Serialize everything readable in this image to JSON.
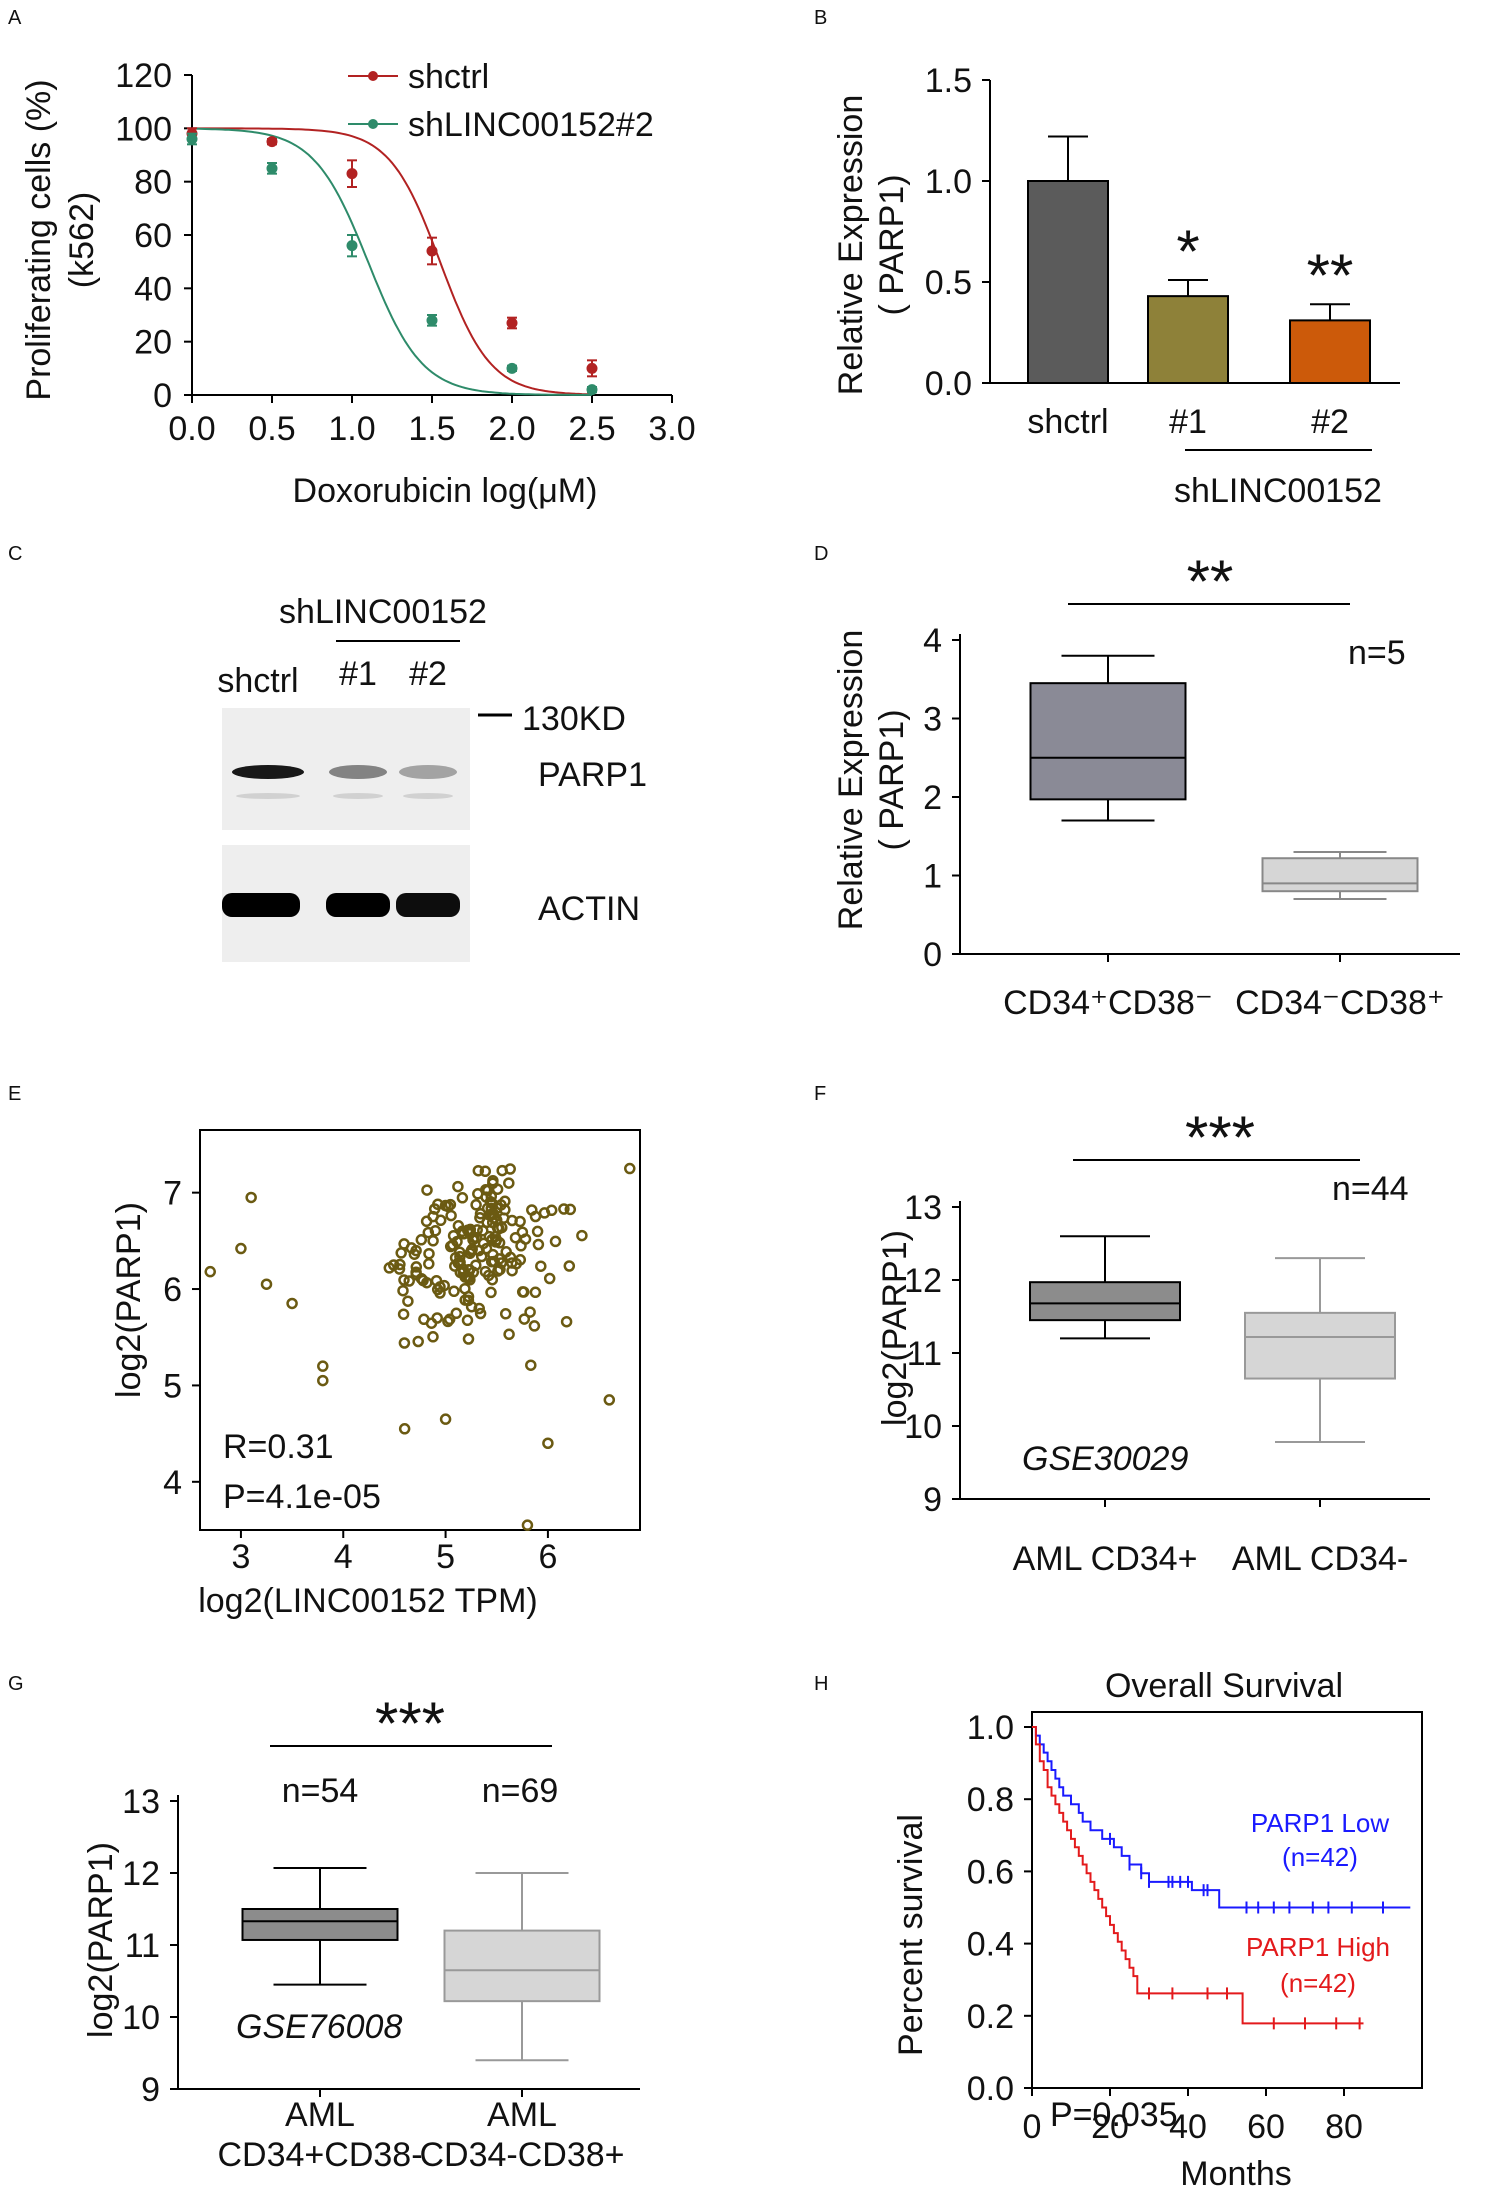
{
  "panels": {
    "A": {
      "letter": "A"
    },
    "B": {
      "letter": "B"
    },
    "C": {
      "letter": "C"
    },
    "D": {
      "letter": "D"
    },
    "E": {
      "letter": "E"
    },
    "F": {
      "letter": "F"
    },
    "G": {
      "letter": "G"
    },
    "H": {
      "letter": "H"
    }
  },
  "colors": {
    "shctrl": "#b22222",
    "shLINC": "#2e8b6a",
    "bar_shctrl": "#5b5b5b",
    "bar_1": "#8e8139",
    "bar_2": "#cc5a0a",
    "box_dark": "#8a8a96",
    "box_light": "#d6d6d6",
    "scatter": "#6b5a12",
    "km_low": "#1a1aff",
    "km_high": "#e31a1c"
  },
  "chart_data": [
    {
      "panel": "A",
      "type": "scatter",
      "ylabel_line1": "Proliferating cells (%)",
      "ylabel_line2": "(k562)",
      "xlabel": "Doxorubicin log(μM)",
      "xlim": [
        0,
        3
      ],
      "ylim": [
        0,
        120
      ],
      "xticks": [
        "0.0",
        "0.5",
        "1.0",
        "1.5",
        "2.0",
        "2.5",
        "3.0"
      ],
      "yticks": [
        "0",
        "20",
        "40",
        "60",
        "80",
        "100",
        "120"
      ],
      "series": [
        {
          "name": "shctrl",
          "x": [
            0.0,
            0.5,
            1.0,
            1.5,
            2.0,
            2.5
          ],
          "y": [
            98,
            95,
            83,
            54,
            27,
            10
          ],
          "err": [
            2,
            1,
            5,
            5,
            2,
            3
          ],
          "ic50": 1.55,
          "hill": 3.0
        },
        {
          "name": "shLINC00152#2",
          "x": [
            0.0,
            0.5,
            1.0,
            1.5,
            2.0,
            2.5
          ],
          "y": [
            96,
            85,
            56,
            28,
            10,
            2
          ],
          "err": [
            2,
            2,
            4,
            2,
            1,
            1
          ],
          "ic50": 1.1,
          "hill": 2.8
        }
      ]
    },
    {
      "panel": "B",
      "type": "bar",
      "ylabel_line1": "Relative Expression",
      "ylabel_line2": "( PARP1)",
      "ylim": [
        0,
        1.5
      ],
      "yticks": [
        "0.0",
        "0.5",
        "1.0",
        "1.5"
      ],
      "categories": [
        "shctrl",
        "#1",
        "#2"
      ],
      "values": [
        1.0,
        0.43,
        0.31
      ],
      "errors": [
        0.22,
        0.08,
        0.08
      ],
      "significance": [
        "",
        "*",
        "**"
      ],
      "group_label": "shLINC00152"
    },
    {
      "panel": "D",
      "type": "box",
      "ylabel_line1": "Relative Expression",
      "ylabel_line2": "( PARP1)",
      "ylim": [
        0,
        4
      ],
      "yticks": [
        "0",
        "1",
        "2",
        "3",
        "4"
      ],
      "groups": [
        {
          "label": "CD34⁺CD38⁻",
          "min": 1.7,
          "q1": 1.97,
          "median": 2.5,
          "q3": 3.45,
          "max": 3.8
        },
        {
          "label": "CD34⁻CD38⁺",
          "min": 0.7,
          "q1": 0.8,
          "median": 0.9,
          "q3": 1.22,
          "max": 1.3
        }
      ],
      "significance": "**",
      "n_label": "n=5"
    },
    {
      "panel": "E",
      "type": "scatter",
      "xlabel": "log2(LINC00152 TPM)",
      "ylabel": "log2(PARP1)",
      "xticks": [
        "3",
        "4",
        "5",
        "6"
      ],
      "yticks": [
        "4",
        "5",
        "6",
        "7"
      ],
      "xlim": [
        2.6,
        6.9
      ],
      "ylim": [
        3.5,
        7.65
      ],
      "R": "R=0.31",
      "P": "P=4.1e-05"
    },
    {
      "panel": "F",
      "type": "box",
      "ylabel": "log2(PARP1)",
      "ylim": [
        9,
        13
      ],
      "yticks": [
        "9",
        "10",
        "11",
        "12",
        "13"
      ],
      "groups": [
        {
          "label": "AML CD34+",
          "min": 11.2,
          "q1": 11.45,
          "median": 11.68,
          "q3": 11.97,
          "max": 12.6
        },
        {
          "label": "AML CD34-",
          "min": 9.78,
          "q1": 10.65,
          "median": 11.22,
          "q3": 11.55,
          "max": 12.3
        }
      ],
      "significance": "***",
      "n_label": "n=44",
      "dataset": "GSE30029"
    },
    {
      "panel": "G",
      "type": "box",
      "ylabel": "log2(PARP1)",
      "ylim": [
        9,
        13
      ],
      "yticks": [
        "9",
        "10",
        "11",
        "12",
        "13"
      ],
      "groups": [
        {
          "label_line1": "AML",
          "label_line2": "CD34+CD38-",
          "n": "n=54",
          "min": 10.45,
          "q1": 11.07,
          "median": 11.33,
          "q3": 11.5,
          "max": 12.07
        },
        {
          "label_line1": "AML",
          "label_line2": "CD34-CD38+",
          "n": "n=69",
          "min": 9.4,
          "q1": 10.22,
          "median": 10.65,
          "q3": 11.2,
          "max": 12.0
        }
      ],
      "significance": "***",
      "dataset": "GSE76008"
    },
    {
      "panel": "H",
      "type": "line",
      "title": "Overall Survival",
      "xlabel": "Months",
      "ylabel": "Percent survival",
      "xlim": [
        0,
        100
      ],
      "ylim": [
        0,
        1.0
      ],
      "xticks": [
        "0",
        "20",
        "40",
        "60",
        "80"
      ],
      "yticks": [
        "0.0",
        "0.2",
        "0.4",
        "0.6",
        "0.8",
        "1.0"
      ],
      "p_value": "P=0.035",
      "series": [
        {
          "name": "PARP1 Low",
          "n": "(n=42)",
          "times": [
            0,
            1,
            2,
            3,
            4,
            5,
            6,
            7,
            8,
            10,
            12,
            13,
            15,
            18,
            21,
            23,
            25,
            28,
            30,
            33,
            37,
            41,
            48,
            97
          ],
          "surv": [
            1.0,
            0.976,
            0.952,
            0.929,
            0.905,
            0.881,
            0.857,
            0.833,
            0.81,
            0.786,
            0.762,
            0.738,
            0.714,
            0.69,
            0.667,
            0.643,
            0.619,
            0.595,
            0.571,
            0.571,
            0.571,
            0.548,
            0.5,
            0.5
          ],
          "censor_t": [
            20,
            25,
            28,
            30,
            35,
            36,
            38,
            40,
            44,
            45,
            55,
            58,
            62,
            66,
            72,
            76,
            82,
            90
          ],
          "censor_s": [
            0.69,
            0.619,
            0.595,
            0.571,
            0.571,
            0.571,
            0.571,
            0.571,
            0.548,
            0.548,
            0.5,
            0.5,
            0.5,
            0.5,
            0.5,
            0.5,
            0.5,
            0.5
          ]
        },
        {
          "name": "PARP1 High",
          "n": "(n=42)",
          "times": [
            0,
            1,
            2,
            3,
            4,
            5,
            6,
            7,
            8,
            9,
            10,
            11,
            12,
            13,
            14,
            15,
            16,
            17,
            18,
            19,
            20,
            21,
            22,
            23,
            24,
            25,
            26,
            27,
            54,
            85
          ],
          "surv": [
            1.0,
            0.952,
            0.905,
            0.881,
            0.833,
            0.81,
            0.786,
            0.762,
            0.738,
            0.714,
            0.69,
            0.667,
            0.643,
            0.619,
            0.595,
            0.571,
            0.548,
            0.524,
            0.5,
            0.476,
            0.452,
            0.429,
            0.405,
            0.381,
            0.357,
            0.333,
            0.31,
            0.262,
            0.179,
            0.179
          ],
          "censor_t": [
            30,
            36,
            45,
            50,
            62,
            70,
            78,
            84
          ],
          "censor_s": [
            0.262,
            0.262,
            0.262,
            0.262,
            0.179,
            0.179,
            0.179,
            0.179
          ]
        }
      ]
    }
  ],
  "blot": {
    "header": "shLINC00152",
    "lanes": [
      "shctrl",
      "#1",
      "#2"
    ],
    "marker": "130KD",
    "bands": [
      "PARP1",
      "ACTIN"
    ],
    "parp1_intensity": [
      1.0,
      0.5,
      0.35
    ],
    "actin_intensity": [
      1.0,
      1.0,
      0.95
    ]
  }
}
